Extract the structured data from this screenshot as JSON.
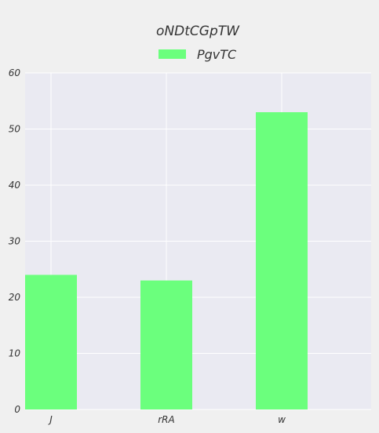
{
  "chart_data": {
    "type": "bar",
    "title": "oNDtCGpTW",
    "xlabel": "",
    "ylabel": "",
    "categories": [
      "J",
      "rRA",
      "w"
    ],
    "series": [
      {
        "name": "PgvTC",
        "values": [
          24,
          23,
          53
        ],
        "color": "#6bff7d"
      }
    ],
    "ylim": [
      0,
      60
    ],
    "yticks": [
      0,
      10,
      20,
      30,
      40,
      50,
      60
    ],
    "grid": true,
    "legend_position": "top-center",
    "plot_background": "#eaeaf2",
    "grid_color": "#ffffff"
  }
}
